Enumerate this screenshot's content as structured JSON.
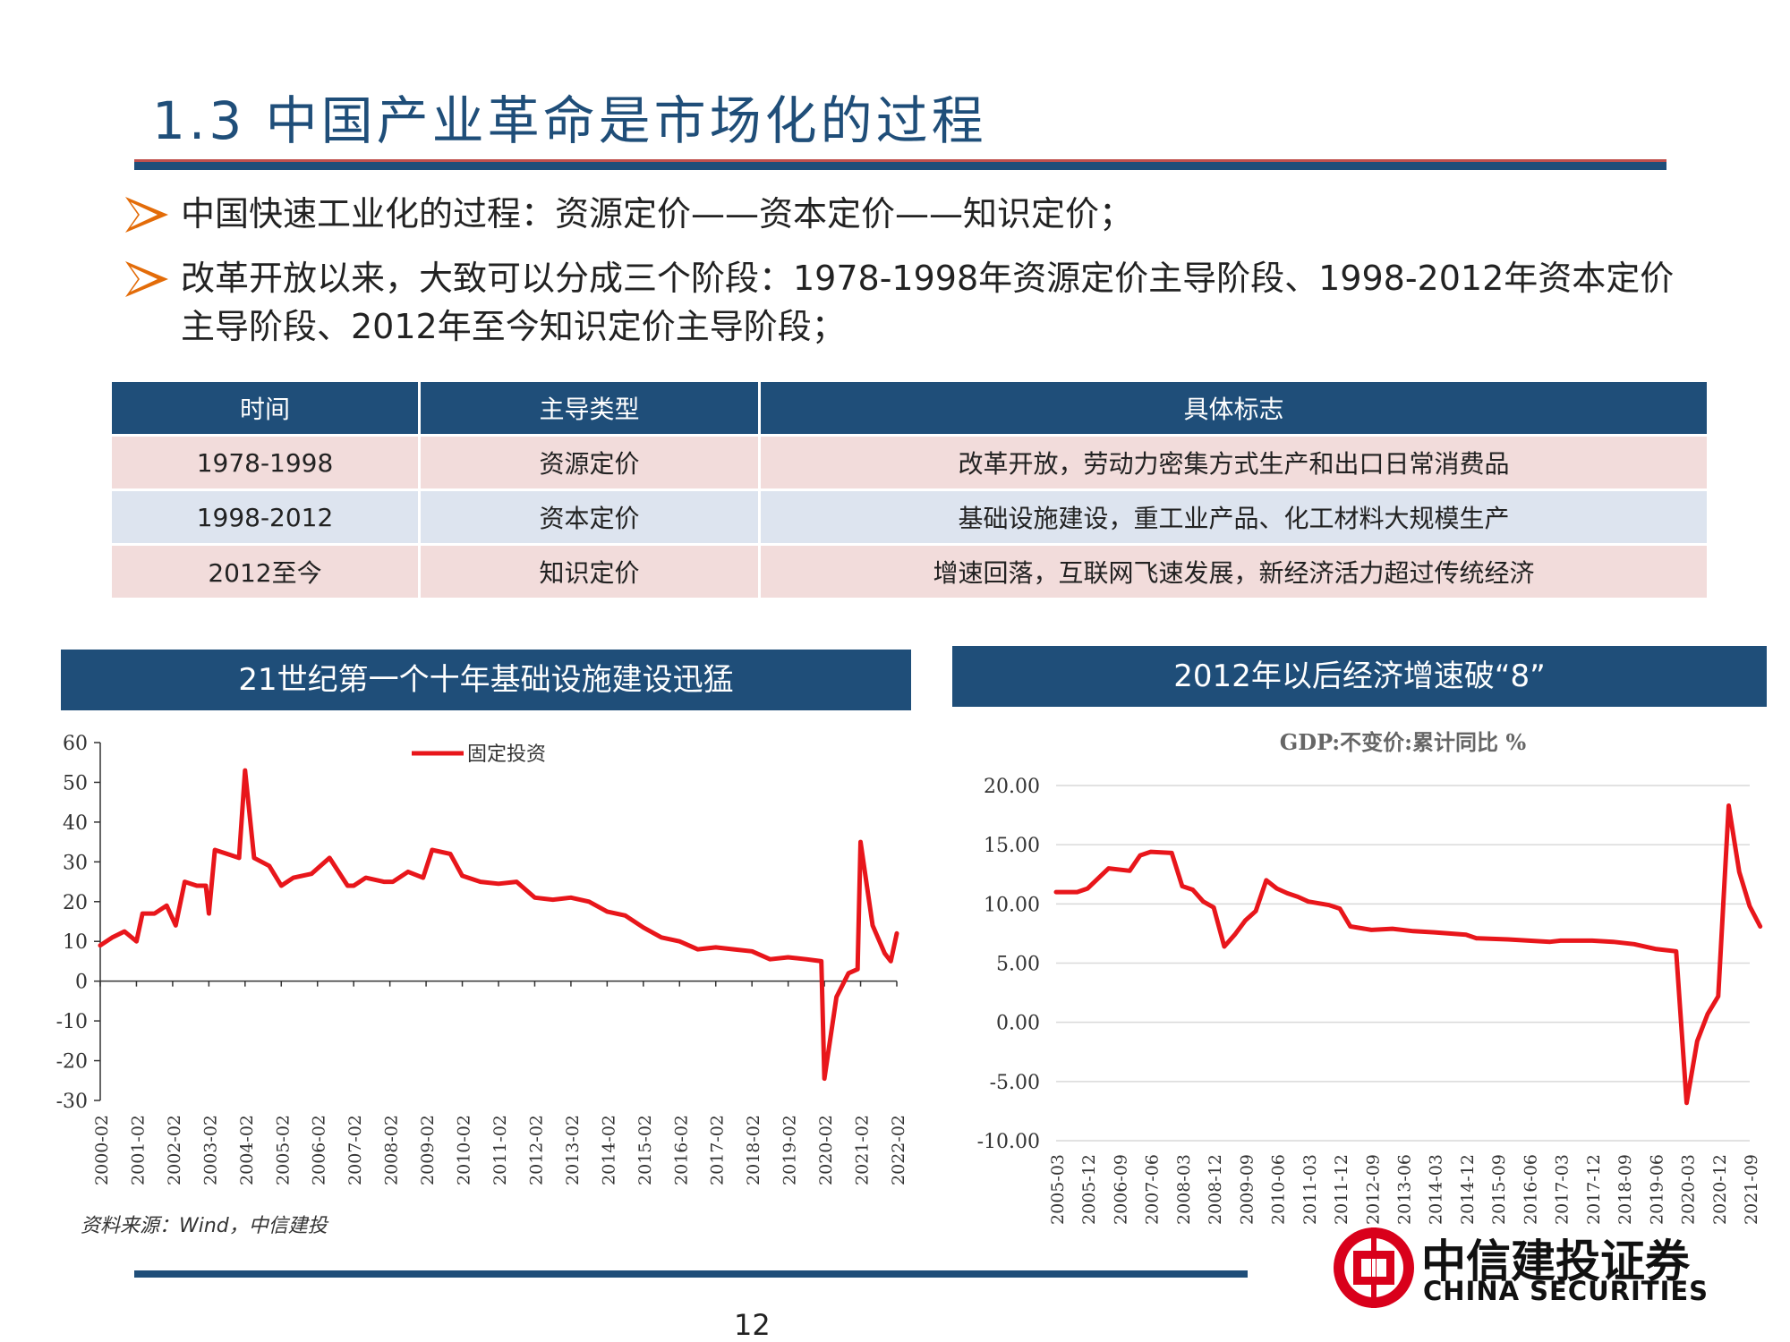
{
  "slide": {
    "title": "1.3 中国产业革命是市场化的过程",
    "bullets": [
      "中国快速工业化的过程：资源定价——资本定价——知识定价；",
      "改革开放以来，大致可以分成三个阶段：1978-1998年资源定价主导阶段、1998-2012年资本定价主导阶段、2012年至今知识定价主导阶段；"
    ],
    "page_number": "12",
    "source_note": "资料来源：Wind，中信建投"
  },
  "colors": {
    "navy": "#1f4e79",
    "accent_red": "#c0504d",
    "line_red": "#e8161b",
    "row_pink": "#f2dcdb",
    "row_blue": "#dde4ef"
  },
  "table": {
    "headers": [
      "时间",
      "主导类型",
      "具体标志"
    ],
    "rows": [
      [
        "1978-1998",
        "资源定价",
        "改革开放，劳动力密集方式生产和出口日常消费品"
      ],
      [
        "1998-2012",
        "资本定价",
        "基础设施建设，重工业产品、化工材料大规模生产"
      ],
      [
        "2012至今",
        "知识定价",
        "增速回落，互联网飞速发展，新经济活力超过传统经济"
      ]
    ]
  },
  "panels": {
    "left_title": "21世纪第一个十年基础设施建设迅猛",
    "right_title": "2012年以后经济增速破“8”"
  },
  "logo": {
    "cn": "中信建投证券",
    "en": "CHINA SECURITIES"
  },
  "chart_data": [
    {
      "type": "line",
      "title": "",
      "xlabel": "",
      "ylabel": "",
      "ylim": [
        -30,
        60
      ],
      "yticks": [
        60,
        50,
        40,
        30,
        20,
        10,
        0,
        -10,
        -20,
        -30
      ],
      "xticks": [
        "2000-02",
        "2001-02",
        "2002-02",
        "2003-02",
        "2004-02",
        "2005-02",
        "2006-02",
        "2007-02",
        "2008-02",
        "2009-02",
        "2010-02",
        "2011-02",
        "2012-02",
        "2013-02",
        "2014-02",
        "2015-02",
        "2016-02",
        "2017-02",
        "2018-02",
        "2019-02",
        "2020-02",
        "2021-02",
        "2022-02"
      ],
      "legend": "top-center",
      "series": [
        {
          "name": "固定投资",
          "color": "#e8161b",
          "points": [
            [
              "2000-02",
              9
            ],
            [
              "2000-06",
              11
            ],
            [
              "2000-10",
              12.5
            ],
            [
              "2001-02",
              10
            ],
            [
              "2001-04",
              17
            ],
            [
              "2001-08",
              17
            ],
            [
              "2001-12",
              19
            ],
            [
              "2002-03",
              14
            ],
            [
              "2002-06",
              25
            ],
            [
              "2002-10",
              24
            ],
            [
              "2003-01",
              24
            ],
            [
              "2003-02",
              17
            ],
            [
              "2003-04",
              33
            ],
            [
              "2003-08",
              32
            ],
            [
              "2003-12",
              31
            ],
            [
              "2004-02",
              53
            ],
            [
              "2004-05",
              31
            ],
            [
              "2004-10",
              29
            ],
            [
              "2005-02",
              24
            ],
            [
              "2005-06",
              26
            ],
            [
              "2005-12",
              27
            ],
            [
              "2006-03",
              29
            ],
            [
              "2006-06",
              31
            ],
            [
              "2006-12",
              24
            ],
            [
              "2007-02",
              24
            ],
            [
              "2007-06",
              26
            ],
            [
              "2007-12",
              25
            ],
            [
              "2008-03",
              25
            ],
            [
              "2008-08",
              27.5
            ],
            [
              "2009-01",
              26
            ],
            [
              "2009-04",
              33
            ],
            [
              "2009-10",
              32
            ],
            [
              "2010-02",
              26.5
            ],
            [
              "2010-08",
              25
            ],
            [
              "2011-02",
              24.5
            ],
            [
              "2011-08",
              25
            ],
            [
              "2012-02",
              21
            ],
            [
              "2012-08",
              20.5
            ],
            [
              "2013-02",
              21
            ],
            [
              "2013-08",
              20
            ],
            [
              "2014-02",
              17.5
            ],
            [
              "2014-08",
              16.5
            ],
            [
              "2015-02",
              13.5
            ],
            [
              "2015-08",
              11
            ],
            [
              "2016-02",
              10
            ],
            [
              "2016-08",
              8
            ],
            [
              "2017-02",
              8.5
            ],
            [
              "2017-08",
              8
            ],
            [
              "2018-02",
              7.5
            ],
            [
              "2018-08",
              5.5
            ],
            [
              "2019-02",
              6
            ],
            [
              "2019-08",
              5.5
            ],
            [
              "2020-01",
              5
            ],
            [
              "2020-02",
              -24.5
            ],
            [
              "2020-06",
              -4
            ],
            [
              "2020-10",
              2
            ],
            [
              "2021-01",
              3
            ],
            [
              "2021-02",
              35
            ],
            [
              "2021-06",
              14
            ],
            [
              "2021-10",
              7
            ],
            [
              "2021-12",
              5
            ],
            [
              "2022-02",
              12
            ]
          ]
        }
      ]
    },
    {
      "type": "line",
      "title": "GDP:不变价:累计同比 %",
      "xlabel": "",
      "ylabel": "",
      "ylim": [
        -10,
        20
      ],
      "yticks": [
        "20.00",
        "15.00",
        "10.00",
        "5.00",
        "0.00",
        "-5.00",
        "-10.00"
      ],
      "xticks": [
        "2005-03",
        "2005-12",
        "2006-09",
        "2007-06",
        "2008-03",
        "2008-12",
        "2009-09",
        "2010-06",
        "2011-03",
        "2011-12",
        "2012-09",
        "2013-06",
        "2014-03",
        "2014-12",
        "2015-09",
        "2016-06",
        "2017-03",
        "2017-12",
        "2018-09",
        "2019-06",
        "2020-03",
        "2020-12",
        "2021-09"
      ],
      "grid": true,
      "series": [
        {
          "name": "",
          "color": "#e8161b",
          "points": [
            [
              "2005-03",
              11.0
            ],
            [
              "2005-09",
              11.0
            ],
            [
              "2005-12",
              11.3
            ],
            [
              "2006-06",
              13.0
            ],
            [
              "2006-12",
              12.8
            ],
            [
              "2007-03",
              14.1
            ],
            [
              "2007-06",
              14.4
            ],
            [
              "2007-12",
              14.3
            ],
            [
              "2008-03",
              11.5
            ],
            [
              "2008-06",
              11.2
            ],
            [
              "2008-09",
              10.2
            ],
            [
              "2008-12",
              9.7
            ],
            [
              "2009-03",
              6.4
            ],
            [
              "2009-06",
              7.4
            ],
            [
              "2009-09",
              8.6
            ],
            [
              "2009-12",
              9.4
            ],
            [
              "2010-03",
              12.0
            ],
            [
              "2010-06",
              11.3
            ],
            [
              "2010-09",
              10.9
            ],
            [
              "2010-12",
              10.6
            ],
            [
              "2011-03",
              10.2
            ],
            [
              "2011-09",
              9.9
            ],
            [
              "2011-12",
              9.6
            ],
            [
              "2012-03",
              8.1
            ],
            [
              "2012-09",
              7.8
            ],
            [
              "2013-03",
              7.9
            ],
            [
              "2013-09",
              7.7
            ],
            [
              "2014-03",
              7.6
            ],
            [
              "2014-12",
              7.4
            ],
            [
              "2015-03",
              7.1
            ],
            [
              "2015-12",
              7.0
            ],
            [
              "2016-12",
              6.8
            ],
            [
              "2017-03",
              6.9
            ],
            [
              "2017-12",
              6.9
            ],
            [
              "2018-06",
              6.8
            ],
            [
              "2018-12",
              6.6
            ],
            [
              "2019-06",
              6.2
            ],
            [
              "2019-12",
              6.0
            ],
            [
              "2020-03",
              -6.8
            ],
            [
              "2020-06",
              -1.6
            ],
            [
              "2020-09",
              0.7
            ],
            [
              "2020-12",
              2.2
            ],
            [
              "2021-03",
              18.3
            ],
            [
              "2021-06",
              12.7
            ],
            [
              "2021-09",
              9.8
            ],
            [
              "2021-12",
              8.1
            ]
          ]
        }
      ]
    }
  ]
}
